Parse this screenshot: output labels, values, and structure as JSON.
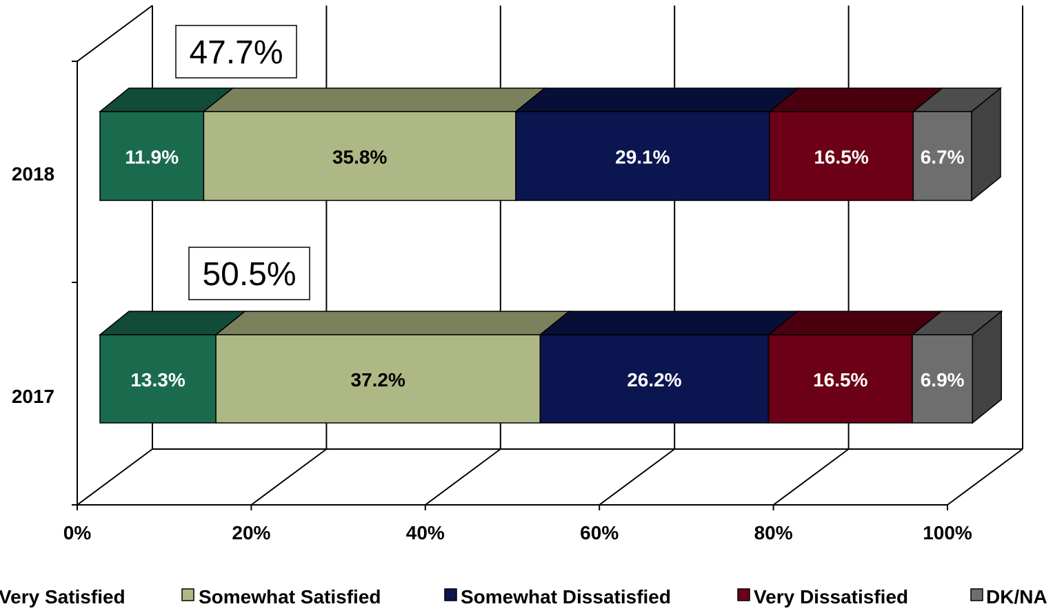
{
  "chart_data": {
    "type": "bar",
    "orientation": "horizontal",
    "stacked": "percent",
    "three_d": true,
    "categories": [
      "2018",
      "2017"
    ],
    "series": [
      {
        "name": "Very Satisfied",
        "color": "#1a6b4e",
        "values": [
          11.9,
          13.3
        ]
      },
      {
        "name": "Somewhat Satisfied",
        "color": "#aeb884",
        "values": [
          35.8,
          37.2
        ]
      },
      {
        "name": "Somewhat Dissatisfied",
        "color": "#0b154f",
        "values": [
          29.1,
          26.2
        ]
      },
      {
        "name": "Very Dissatisfied",
        "color": "#6b0016",
        "values": [
          16.5,
          16.5
        ]
      },
      {
        "name": "DK/NA",
        "color": "#6e6e6e",
        "values": [
          6.7,
          6.9
        ]
      }
    ],
    "data_labels": [
      [
        "11.9%",
        "35.8%",
        "29.1%",
        "16.5%",
        "6.7%"
      ],
      [
        "13.3%",
        "37.2%",
        "26.2%",
        "16.5%",
        "6.9%"
      ]
    ],
    "callouts": [
      "47.7%",
      "50.5%"
    ],
    "x_ticks": [
      "0%",
      "20%",
      "40%",
      "60%",
      "80%",
      "100%"
    ],
    "xlim": [
      0,
      100
    ],
    "grid": true,
    "legend_position": "bottom",
    "title": "",
    "xlabel": "",
    "ylabel": ""
  }
}
